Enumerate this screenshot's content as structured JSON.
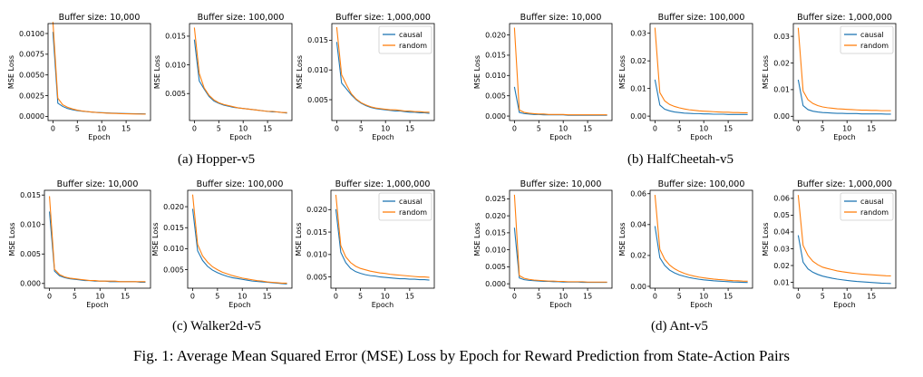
{
  "figure_caption": "Fig. 1: Average Mean Squared Error (MSE) Loss by Epoch for Reward Prediction from State-Action Pairs",
  "colors": {
    "causal": "#1f77b4",
    "random": "#ff7f0e"
  },
  "groups": [
    {
      "caption": "(a) Hopper-v5"
    },
    {
      "caption": "(b) HalfCheetah-v5"
    },
    {
      "caption": "(c) Walker2d-v5"
    },
    {
      "caption": "(d) Ant-v5"
    }
  ],
  "chart_data": [
    {
      "type": "line",
      "group": "Hopper-v5",
      "title": "Buffer size: 10,000",
      "xlabel": "Epoch",
      "ylabel": "MSE Loss",
      "xlim": [
        -1,
        20
      ],
      "ylim": [
        -0.0005,
        0.0112
      ],
      "xticks": [
        0,
        5,
        10,
        15
      ],
      "xtick_labels": [
        "0",
        "5",
        "10",
        "15"
      ],
      "yticks": [
        0,
        0.0025,
        0.005,
        0.0075,
        0.01
      ],
      "ytick_labels": [
        "0.0000",
        "0.0025",
        "0.0050",
        "0.0075",
        "0.0100"
      ],
      "legend": false,
      "series": [
        {
          "name": "causal",
          "values": [
            0.0102,
            0.0016,
            0.0012,
            0.00095,
            0.0008,
            0.0007,
            0.00063,
            0.00057,
            0.00052,
            0.00048,
            0.00045,
            0.00042,
            0.0004,
            0.00038,
            0.00036,
            0.00034,
            0.00033,
            0.00032,
            0.00031,
            0.0003
          ]
        },
        {
          "name": "random",
          "values": [
            0.0114,
            0.0022,
            0.0014,
            0.0011,
            0.0009,
            0.00075,
            0.00065,
            0.00058,
            0.00052,
            0.00047,
            0.00043,
            0.0004,
            0.00037,
            0.00035,
            0.00033,
            0.00031,
            0.0003,
            0.00029,
            0.00028,
            0.00027
          ]
        }
      ]
    },
    {
      "type": "line",
      "group": "Hopper-v5",
      "title": "Buffer size: 100,000",
      "xlabel": "Epoch",
      "ylabel": "MSE Loss",
      "xlim": [
        -1,
        20
      ],
      "ylim": [
        0.0003,
        0.0172
      ],
      "xticks": [
        0,
        5,
        10,
        15
      ],
      "xtick_labels": [
        "0",
        "5",
        "10",
        "15"
      ],
      "yticks": [
        0.005,
        0.01,
        0.015
      ],
      "ytick_labels": [
        "0.005",
        "0.010",
        "0.015"
      ],
      "legend": false,
      "series": [
        {
          "name": "causal",
          "values": [
            0.0144,
            0.0072,
            0.0058,
            0.0045,
            0.0037,
            0.0033,
            0.003,
            0.0028,
            0.0026,
            0.0025,
            0.0024,
            0.0023,
            0.0022,
            0.0021,
            0.002,
            0.0019,
            0.0018,
            0.0018,
            0.0017,
            0.0016
          ]
        },
        {
          "name": "random",
          "values": [
            0.0165,
            0.0085,
            0.006,
            0.0047,
            0.0039,
            0.0034,
            0.0031,
            0.0029,
            0.0027,
            0.0025,
            0.0024,
            0.0023,
            0.0022,
            0.0021,
            0.002,
            0.0019,
            0.0019,
            0.0018,
            0.0017,
            0.0017
          ]
        }
      ]
    },
    {
      "type": "line",
      "group": "Hopper-v5",
      "title": "Buffer size: 1,000,000",
      "xlabel": "Epoch",
      "ylabel": "MSE Loss",
      "xlim": [
        -1,
        20
      ],
      "ylim": [
        0.0015,
        0.0178
      ],
      "xticks": [
        0,
        5,
        10,
        15
      ],
      "xtick_labels": [
        "0",
        "5",
        "10",
        "15"
      ],
      "yticks": [
        0.005,
        0.01,
        0.015
      ],
      "ytick_labels": [
        "0.005",
        "0.010",
        "0.015"
      ],
      "legend": true,
      "series": [
        {
          "name": "causal",
          "values": [
            0.0147,
            0.0078,
            0.0068,
            0.0058,
            0.005,
            0.0044,
            0.004,
            0.0037,
            0.0035,
            0.0034,
            0.0033,
            0.0032,
            0.0031,
            0.0031,
            0.003,
            0.0029,
            0.0029,
            0.0028,
            0.0028,
            0.0027
          ]
        },
        {
          "name": "random",
          "values": [
            0.0172,
            0.0092,
            0.0075,
            0.006,
            0.0051,
            0.0045,
            0.0041,
            0.0038,
            0.0036,
            0.0035,
            0.0034,
            0.0033,
            0.0033,
            0.0032,
            0.0031,
            0.0031,
            0.003,
            0.003,
            0.0029,
            0.0029
          ]
        }
      ]
    },
    {
      "type": "line",
      "group": "HalfCheetah-v5",
      "title": "Buffer size: 10,000",
      "xlabel": "Epoch",
      "ylabel": "MSE Loss",
      "xlim": [
        -1,
        20
      ],
      "ylim": [
        -0.0011,
        0.0228
      ],
      "xticks": [
        0,
        5,
        10,
        15
      ],
      "xtick_labels": [
        "0",
        "5",
        "10",
        "15"
      ],
      "yticks": [
        0,
        0.005,
        0.01,
        0.015,
        0.02
      ],
      "ytick_labels": [
        "0.000",
        "0.005",
        "0.010",
        "0.015",
        "0.020"
      ],
      "legend": false,
      "series": [
        {
          "name": "causal",
          "values": [
            0.0072,
            0.0009,
            0.0006,
            0.0005,
            0.0004,
            0.0004,
            0.0003,
            0.0003,
            0.0003,
            0.0003,
            0.0003,
            0.0002,
            0.0002,
            0.0002,
            0.0002,
            0.0002,
            0.0002,
            0.0002,
            0.0002,
            0.0002
          ]
        },
        {
          "name": "random",
          "values": [
            0.0218,
            0.0015,
            0.0009,
            0.0007,
            0.0006,
            0.0005,
            0.0005,
            0.0004,
            0.0004,
            0.0004,
            0.0004,
            0.0003,
            0.0003,
            0.0003,
            0.0003,
            0.0003,
            0.0003,
            0.0003,
            0.0003,
            0.0003
          ]
        }
      ]
    },
    {
      "type": "line",
      "group": "HalfCheetah-v5",
      "title": "Buffer size: 100,000",
      "xlabel": "Epoch",
      "ylabel": "MSE Loss",
      "xlim": [
        -1,
        20
      ],
      "ylim": [
        -0.0016,
        0.0335
      ],
      "xticks": [
        0,
        5,
        10,
        15
      ],
      "xtick_labels": [
        "0",
        "5",
        "10",
        "15"
      ],
      "yticks": [
        0,
        0.01,
        0.02,
        0.03
      ],
      "ytick_labels": [
        "0.00",
        "0.01",
        "0.02",
        "0.03"
      ],
      "legend": false,
      "series": [
        {
          "name": "causal",
          "values": [
            0.0132,
            0.004,
            0.0025,
            0.0019,
            0.0015,
            0.0013,
            0.0011,
            0.001,
            0.0009,
            0.0009,
            0.0008,
            0.0008,
            0.0007,
            0.0007,
            0.0007,
            0.0006,
            0.0006,
            0.0006,
            0.0006,
            0.0006
          ]
        },
        {
          "name": "random",
          "values": [
            0.032,
            0.0085,
            0.0055,
            0.0042,
            0.0035,
            0.003,
            0.0026,
            0.0023,
            0.0021,
            0.0019,
            0.0018,
            0.0017,
            0.0016,
            0.0015,
            0.0014,
            0.0014,
            0.0013,
            0.0013,
            0.0012,
            0.0012
          ]
        }
      ]
    },
    {
      "type": "line",
      "group": "HalfCheetah-v5",
      "title": "Buffer size: 1,000,000",
      "xlabel": "Epoch",
      "ylabel": "MSE Loss",
      "xlim": [
        -1,
        20
      ],
      "ylim": [
        -0.0016,
        0.0348
      ],
      "xticks": [
        0,
        5,
        10,
        15
      ],
      "xtick_labels": [
        "0",
        "5",
        "10",
        "15"
      ],
      "yticks": [
        0,
        0.01,
        0.02,
        0.03
      ],
      "ytick_labels": [
        "0.00",
        "0.01",
        "0.02",
        "0.03"
      ],
      "legend": true,
      "series": [
        {
          "name": "causal",
          "values": [
            0.0137,
            0.004,
            0.0025,
            0.0019,
            0.0016,
            0.0014,
            0.0013,
            0.0012,
            0.0011,
            0.0011,
            0.001,
            0.001,
            0.001,
            0.0009,
            0.0009,
            0.0009,
            0.0009,
            0.0009,
            0.0008,
            0.0008
          ]
        },
        {
          "name": "random",
          "values": [
            0.0332,
            0.0095,
            0.0062,
            0.0048,
            0.004,
            0.0035,
            0.0032,
            0.003,
            0.0028,
            0.0027,
            0.0026,
            0.0025,
            0.0024,
            0.0023,
            0.0023,
            0.0022,
            0.0022,
            0.0021,
            0.0021,
            0.0021
          ]
        }
      ]
    },
    {
      "type": "line",
      "group": "Walker2d-v5",
      "title": "Buffer size: 10,000",
      "xlabel": "Epoch",
      "ylabel": "MSE Loss",
      "xlim": [
        -1,
        20
      ],
      "ylim": [
        -0.0008,
        0.0158
      ],
      "xticks": [
        0,
        5,
        10,
        15
      ],
      "xtick_labels": [
        "0",
        "5",
        "10",
        "15"
      ],
      "yticks": [
        0,
        0.005,
        0.01,
        0.015
      ],
      "ytick_labels": [
        "0.000",
        "0.005",
        "0.010",
        "0.015"
      ],
      "legend": false,
      "series": [
        {
          "name": "causal",
          "values": [
            0.0122,
            0.0021,
            0.0013,
            0.001,
            0.0008,
            0.0007,
            0.0006,
            0.0005,
            0.0005,
            0.0004,
            0.0004,
            0.0004,
            0.0003,
            0.0003,
            0.0003,
            0.0003,
            0.0003,
            0.0003,
            0.0002,
            0.0002
          ]
        },
        {
          "name": "random",
          "values": [
            0.0148,
            0.0024,
            0.0015,
            0.0011,
            0.0009,
            0.0008,
            0.0007,
            0.0006,
            0.0005,
            0.0005,
            0.0004,
            0.0004,
            0.0004,
            0.0004,
            0.0003,
            0.0003,
            0.0003,
            0.0003,
            0.0003,
            0.0003
          ]
        }
      ]
    },
    {
      "type": "line",
      "group": "Walker2d-v5",
      "title": "Buffer size: 100,000",
      "xlabel": "Epoch",
      "ylabel": "MSE Loss",
      "xlim": [
        -1,
        20
      ],
      "ylim": [
        0.0006,
        0.0239
      ],
      "xticks": [
        0,
        5,
        10,
        15
      ],
      "xtick_labels": [
        "0",
        "5",
        "10",
        "15"
      ],
      "yticks": [
        0.005,
        0.01,
        0.015,
        0.02
      ],
      "ytick_labels": [
        "0.005",
        "0.010",
        "0.015",
        "0.020"
      ],
      "legend": false,
      "series": [
        {
          "name": "causal",
          "values": [
            0.0195,
            0.0095,
            0.0072,
            0.0058,
            0.0049,
            0.0043,
            0.0038,
            0.0034,
            0.0031,
            0.0029,
            0.0027,
            0.0025,
            0.0023,
            0.0022,
            0.0021,
            0.002,
            0.0019,
            0.0018,
            0.0017,
            0.0016
          ]
        },
        {
          "name": "random",
          "values": [
            0.0229,
            0.011,
            0.0083,
            0.0068,
            0.0057,
            0.005,
            0.0044,
            0.004,
            0.0036,
            0.0033,
            0.003,
            0.0028,
            0.0026,
            0.0024,
            0.0023,
            0.0021,
            0.002,
            0.0019,
            0.0018,
            0.0018
          ]
        }
      ]
    },
    {
      "type": "line",
      "group": "Walker2d-v5",
      "title": "Buffer size: 1,000,000",
      "xlabel": "Epoch",
      "ylabel": "MSE Loss",
      "xlim": [
        -1,
        20
      ],
      "ylim": [
        0.0025,
        0.0243
      ],
      "xticks": [
        0,
        5,
        10,
        15
      ],
      "xtick_labels": [
        "0",
        "5",
        "10",
        "15"
      ],
      "yticks": [
        0.005,
        0.01,
        0.015,
        0.02
      ],
      "ytick_labels": [
        "0.005",
        "0.010",
        "0.015",
        "0.020"
      ],
      "legend": true,
      "series": [
        {
          "name": "causal",
          "values": [
            0.0201,
            0.0105,
            0.0082,
            0.0069,
            0.0062,
            0.0058,
            0.0055,
            0.0053,
            0.0052,
            0.005,
            0.0049,
            0.0048,
            0.0047,
            0.0046,
            0.0046,
            0.0045,
            0.0045,
            0.0044,
            0.0044,
            0.0043
          ]
        },
        {
          "name": "random",
          "values": [
            0.0233,
            0.012,
            0.0095,
            0.0082,
            0.0074,
            0.0069,
            0.0066,
            0.0063,
            0.0061,
            0.0059,
            0.0058,
            0.0056,
            0.0055,
            0.0054,
            0.0053,
            0.0052,
            0.0051,
            0.005,
            0.005,
            0.0049
          ]
        }
      ]
    },
    {
      "type": "line",
      "group": "Ant-v5",
      "title": "Buffer size: 10,000",
      "xlabel": "Epoch",
      "ylabel": "MSE Loss",
      "xlim": [
        -1,
        20
      ],
      "ylim": [
        -0.0013,
        0.0275
      ],
      "xticks": [
        0,
        5,
        10,
        15
      ],
      "xtick_labels": [
        "0",
        "5",
        "10",
        "15"
      ],
      "yticks": [
        0,
        0.005,
        0.01,
        0.015,
        0.02,
        0.025
      ],
      "ytick_labels": [
        "0.000",
        "0.005",
        "0.010",
        "0.015",
        "0.020",
        "0.025"
      ],
      "legend": false,
      "series": [
        {
          "name": "causal",
          "values": [
            0.0165,
            0.0017,
            0.0012,
            0.001,
            0.0009,
            0.0008,
            0.0007,
            0.0007,
            0.0006,
            0.0006,
            0.0005,
            0.0005,
            0.0005,
            0.0005,
            0.0004,
            0.0004,
            0.0004,
            0.0004,
            0.0004,
            0.0004
          ]
        },
        {
          "name": "random",
          "values": [
            0.0262,
            0.0024,
            0.0016,
            0.0013,
            0.0011,
            0.001,
            0.0009,
            0.0008,
            0.0008,
            0.0007,
            0.0007,
            0.0006,
            0.0006,
            0.0006,
            0.0006,
            0.0005,
            0.0005,
            0.0005,
            0.0005,
            0.0005
          ]
        }
      ]
    },
    {
      "type": "line",
      "group": "Ant-v5",
      "title": "Buffer size: 100,000",
      "xlabel": "Epoch",
      "ylabel": "MSE Loss",
      "xlim": [
        -1,
        20
      ],
      "ylim": [
        -0.0012,
        0.0622
      ],
      "xticks": [
        0,
        5,
        10,
        15
      ],
      "xtick_labels": [
        "0",
        "5",
        "10",
        "15"
      ],
      "yticks": [
        0,
        0.02,
        0.04,
        0.06
      ],
      "ytick_labels": [
        "0.00",
        "0.02",
        "0.04",
        "0.06"
      ],
      "legend": false,
      "series": [
        {
          "name": "causal",
          "values": [
            0.039,
            0.0185,
            0.0135,
            0.0105,
            0.0087,
            0.0074,
            0.0065,
            0.0057,
            0.0051,
            0.0046,
            0.0042,
            0.0039,
            0.0036,
            0.0034,
            0.0032,
            0.003,
            0.0028,
            0.0027,
            0.0026,
            0.0025
          ]
        },
        {
          "name": "random",
          "values": [
            0.0592,
            0.024,
            0.0175,
            0.0138,
            0.0114,
            0.0097,
            0.0084,
            0.0074,
            0.0066,
            0.006,
            0.0055,
            0.0051,
            0.0047,
            0.0044,
            0.0042,
            0.0039,
            0.0037,
            0.0036,
            0.0034,
            0.0033
          ]
        }
      ]
    },
    {
      "type": "line",
      "group": "Ant-v5",
      "title": "Buffer size: 1,000,000",
      "xlabel": "Epoch",
      "ylabel": "MSE Loss",
      "xlim": [
        -1,
        20
      ],
      "ylim": [
        0.0065,
        0.0648
      ],
      "xticks": [
        0,
        5,
        10,
        15
      ],
      "xtick_labels": [
        "0",
        "5",
        "10",
        "15"
      ],
      "yticks": [
        0.01,
        0.02,
        0.03,
        0.04,
        0.05,
        0.06
      ],
      "ytick_labels": [
        "0.01",
        "0.02",
        "0.03",
        "0.04",
        "0.05",
        "0.06"
      ],
      "legend": true,
      "series": [
        {
          "name": "causal",
          "values": [
            0.038,
            0.022,
            0.018,
            0.016,
            0.0147,
            0.0137,
            0.013,
            0.0124,
            0.0119,
            0.0115,
            0.0111,
            0.0108,
            0.0105,
            0.0103,
            0.0101,
            0.0099,
            0.0097,
            0.0095,
            0.0094,
            0.0093
          ]
        },
        {
          "name": "random",
          "values": [
            0.062,
            0.032,
            0.026,
            0.0225,
            0.0205,
            0.019,
            0.0182,
            0.0175,
            0.0168,
            0.0163,
            0.0159,
            0.0155,
            0.0152,
            0.0149,
            0.0147,
            0.0145,
            0.0143,
            0.0141,
            0.0139,
            0.0138
          ]
        }
      ]
    }
  ]
}
